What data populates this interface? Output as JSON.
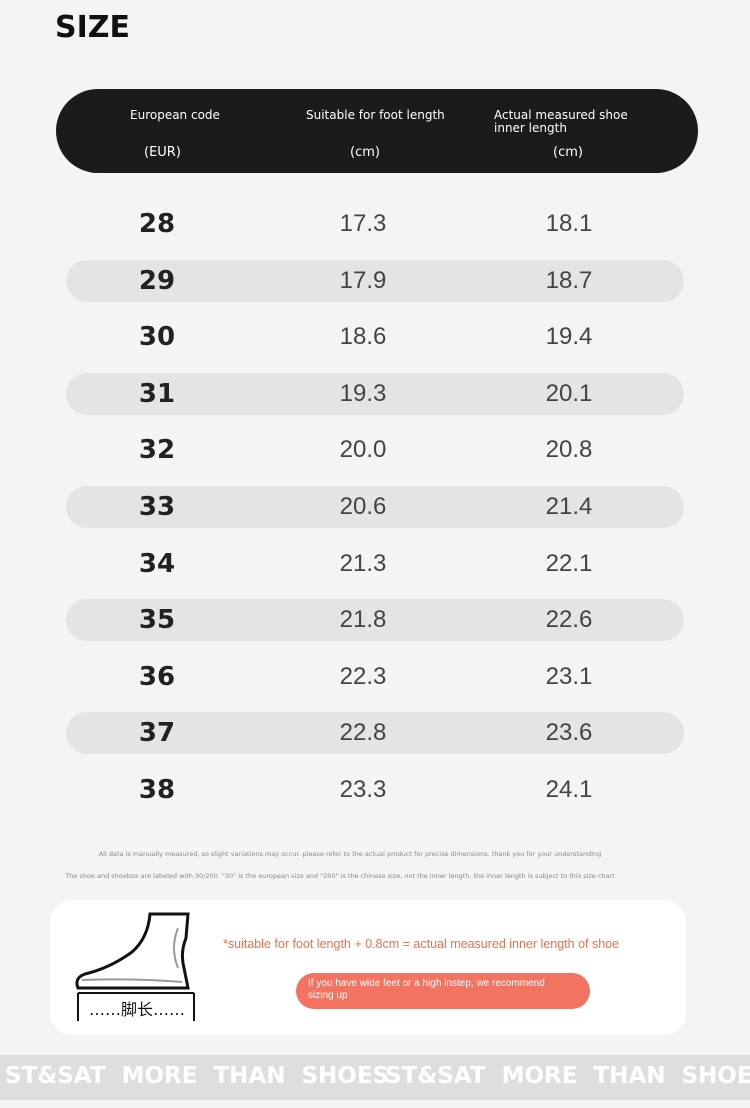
{
  "title": "SIZE",
  "header": [
    {
      "label": "European code",
      "unit": "(EUR)"
    },
    {
      "label": "Suitable for foot length",
      "unit": "(cm)"
    },
    {
      "label": "Actual measured shoe inner length",
      "unit": "(cm)"
    }
  ],
  "table": {
    "rows": [
      [
        "28",
        "17.3",
        "18.1"
      ],
      [
        "29",
        "17.9",
        "18.7"
      ],
      [
        "30",
        "18.6",
        "19.4"
      ],
      [
        "31",
        "19.3",
        "20.1"
      ],
      [
        "32",
        "20.0",
        "20.8"
      ],
      [
        "33",
        "20.6",
        "21.4"
      ],
      [
        "34",
        "21.3",
        "22.1"
      ],
      [
        "35",
        "21.8",
        "22.6"
      ],
      [
        "36",
        "22.3",
        "23.1"
      ],
      [
        "37",
        "22.8",
        "23.6"
      ],
      [
        "38",
        "23.3",
        "24.1"
      ]
    ]
  },
  "notes": [
    "All data is manually measured, so slight variations may occur. please refer to the actual product for precise dimensions. thank you for your understanding",
    "The shoe and shoebox are labeled with 30/200. \"30\" is the european size and \"200\" is the chinese size, not the inner length. the inner length is subject to this size chart"
  ],
  "tip": {
    "foot_label": "……脚长……",
    "formula": "*suitable for foot length + 0.8cm = actual measured inner length of shoe",
    "button": "If you have wide feet or a high instep, we recommend sizing up"
  },
  "footer": [
    "ST&SAT MORE THAN SHOES",
    "ST&SAT MORE THAN SHOES"
  ]
}
